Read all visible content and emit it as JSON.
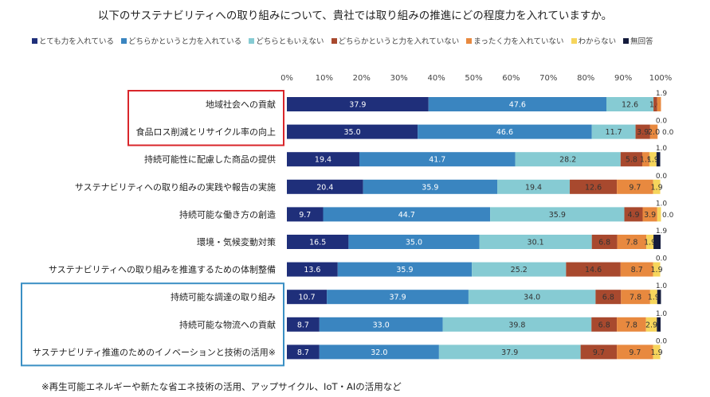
{
  "chart_data": {
    "type": "bar",
    "orientation": "horizontal",
    "stacked": true,
    "title": "以下のサステナビリティへの取り組みについて、貴社では取り組みの推進にどの程度力を入れていますか。",
    "xlim": [
      0,
      100
    ],
    "x_ticks": [
      "0%",
      "10%",
      "20%",
      "30%",
      "40%",
      "50%",
      "60%",
      "70%",
      "80%",
      "90%",
      "100%"
    ],
    "legend_position": "top",
    "categories": [
      "地域社会への貢献",
      "食品ロス削減とリサイクル率の向上",
      "持続可能性に配慮した商品の提供",
      "サステナビリティへの取り組みの実践や報告の実施",
      "持続可能な働き方の創造",
      "環境・気候変動対策",
      "サステナビリティへの取り組みを推進するための体制整備",
      "持続可能な調達の取り組み",
      "持続可能な物流への貢献",
      "サステナビリティ推進のためのイノベーションと技術の活用※"
    ],
    "series": [
      {
        "name": "とても力を入れている",
        "color": "#1f2f7a",
        "values": [
          37.9,
          35.0,
          19.4,
          20.4,
          9.7,
          16.5,
          13.6,
          10.7,
          8.7,
          8.7
        ],
        "labels": [
          "37.9",
          "35.0",
          "19.4",
          "20.4",
          "9.7",
          "16.5",
          "13.6",
          "10.7",
          "8.7",
          "8.7"
        ]
      },
      {
        "name": "どちらかというと力を入れている",
        "color": "#3a85c0",
        "values": [
          47.6,
          46.6,
          41.7,
          35.9,
          44.7,
          35.0,
          35.9,
          37.9,
          33.0,
          32.0
        ],
        "labels": [
          "47.6",
          "46.6",
          "41.7",
          "35.9",
          "44.7",
          "35.0",
          "35.9",
          "37.9",
          "33.0",
          "32.0"
        ]
      },
      {
        "name": "どちらともいえない",
        "color": "#86cbd3",
        "values": [
          12.6,
          11.7,
          28.2,
          19.4,
          35.9,
          30.1,
          25.2,
          34.0,
          39.8,
          37.9
        ],
        "labels": [
          "12.6",
          "11.7",
          "28.2",
          "19.4",
          "35.9",
          "30.1",
          "25.2",
          "34.0",
          "39.8",
          "37.9"
        ]
      },
      {
        "name": "どちらかというと力を入れていない",
        "color": "#a8492e",
        "values": [
          1.0,
          3.9,
          5.8,
          12.6,
          4.9,
          6.8,
          14.6,
          6.8,
          6.8,
          9.7
        ],
        "labels": [
          "1.0",
          "3.9",
          "5.8",
          "12.6",
          "4.9",
          "6.8",
          "14.6",
          "6.8",
          "6.8",
          "9.7"
        ]
      },
      {
        "name": "まったく力を入れていない",
        "color": "#e8893f",
        "values": [
          1.0,
          2.0,
          1.9,
          9.7,
          3.9,
          7.8,
          8.7,
          7.8,
          7.8,
          9.7
        ],
        "labels": [
          "",
          "2.0",
          "1.9",
          "9.7",
          "3.9",
          "7.8",
          "8.7",
          "7.8",
          "7.8",
          "9.7"
        ]
      },
      {
        "name": "わからない",
        "color": "#f6d55c",
        "values": [
          0.0,
          0.0,
          1.9,
          1.9,
          1.0,
          1.9,
          1.9,
          1.9,
          2.9,
          1.9
        ],
        "labels": [
          "",
          "",
          "1.9",
          "1.9",
          "",
          "1.9",
          "1.9",
          "1.9",
          "2.9",
          "1.9"
        ]
      },
      {
        "name": "無回答",
        "color": "#141b3c",
        "values": [
          0.0,
          0.0,
          1.0,
          0.0,
          0.0,
          1.9,
          0.0,
          1.0,
          1.0,
          0.0
        ],
        "labels": [
          "",
          "",
          "",
          "",
          "",
          "",
          "",
          "",
          "",
          ""
        ]
      }
    ],
    "above_labels": [
      [
        {
          "text": "1.9"
        }
      ],
      [
        {
          "text": "0.0"
        }
      ],
      [
        {
          "text": "1.0"
        }
      ],
      [
        {
          "text": "0.0"
        }
      ],
      [
        {
          "text": "1.0"
        }
      ],
      [
        {
          "text": "1.9"
        }
      ],
      [
        {
          "text": "0.0"
        }
      ],
      [
        {
          "text": "1.0"
        }
      ],
      [
        {
          "text": "1.0"
        }
      ],
      [
        {
          "text": "0.0"
        }
      ]
    ],
    "right_labels": [
      "",
      "0.0",
      "",
      "",
      "0.0",
      "",
      "",
      "",
      "",
      ""
    ],
    "highlight_groups": [
      {
        "color": "#d9262b",
        "rows": [
          0,
          1
        ]
      },
      {
        "color": "#3a8fc4",
        "rows": [
          7,
          8,
          9
        ]
      }
    ],
    "footnote": "※再生可能エネルギーや新たな省エネ技術の活用、アップサイクル、IoT・AIの活用など"
  }
}
